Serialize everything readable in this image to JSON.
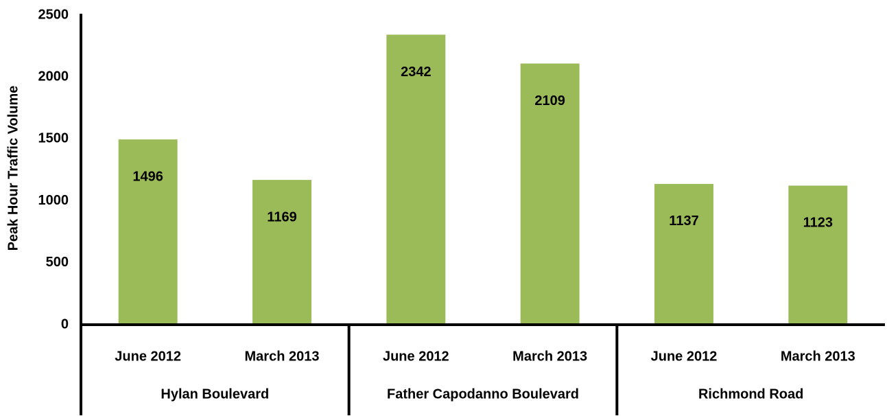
{
  "chart_data": {
    "type": "bar",
    "y_axis_label": "Peak Hour Traffic Volume",
    "categories": [
      "June 2012",
      "March 2013",
      "June 2012",
      "March 2013",
      "June 2012",
      "March 2013"
    ],
    "category_groups": [
      "Hylan Boulevard",
      "Father Capodanno Boulevard",
      "Richmond Road"
    ],
    "values": [
      1496,
      1169,
      2342,
      2109,
      1137,
      1123
    ],
    "color": "#9bbb59",
    "ylim": [
      0,
      2500
    ],
    "yticks": [
      0,
      500,
      1000,
      1500,
      2000,
      2500
    ],
    "grid": false
  }
}
